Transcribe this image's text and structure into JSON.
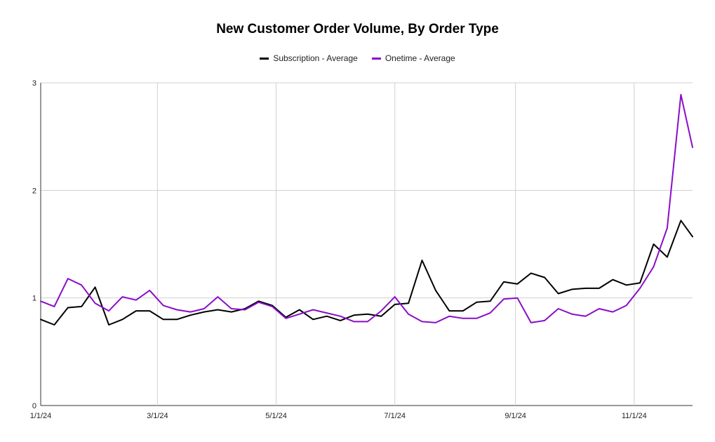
{
  "chart_data": {
    "type": "line",
    "title": "New Customer Order Volume, By Order Type",
    "xlabel": "",
    "ylabel": "",
    "x_start": "2024-01-01",
    "x_end": "2024-12-01",
    "x_ticks": [
      {
        "date": "2024-01-01",
        "label": "1/1/24"
      },
      {
        "date": "2024-03-01",
        "label": "3/1/24"
      },
      {
        "date": "2024-05-01",
        "label": "5/1/24"
      },
      {
        "date": "2024-07-01",
        "label": "7/1/24"
      },
      {
        "date": "2024-09-01",
        "label": "9/1/24"
      },
      {
        "date": "2024-11-01",
        "label": "11/1/24"
      }
    ],
    "ylim": [
      0,
      3
    ],
    "y_ticks": [
      0,
      1,
      2,
      3
    ],
    "grid": true,
    "legend": "top-center",
    "x": [
      "2024-01-01",
      "2024-01-08",
      "2024-01-15",
      "2024-01-22",
      "2024-01-29",
      "2024-02-05",
      "2024-02-12",
      "2024-02-19",
      "2024-02-26",
      "2024-03-04",
      "2024-03-11",
      "2024-03-18",
      "2024-03-25",
      "2024-04-01",
      "2024-04-08",
      "2024-04-15",
      "2024-04-22",
      "2024-04-29",
      "2024-05-06",
      "2024-05-13",
      "2024-05-20",
      "2024-05-27",
      "2024-06-03",
      "2024-06-10",
      "2024-06-17",
      "2024-06-24",
      "2024-07-01",
      "2024-07-08",
      "2024-07-15",
      "2024-07-22",
      "2024-07-29",
      "2024-08-05",
      "2024-08-12",
      "2024-08-19",
      "2024-08-26",
      "2024-09-02",
      "2024-09-09",
      "2024-09-16",
      "2024-09-23",
      "2024-09-30",
      "2024-10-07",
      "2024-10-14",
      "2024-10-21",
      "2024-10-28",
      "2024-11-04",
      "2024-11-11",
      "2024-11-18",
      "2024-11-25",
      "2024-12-01"
    ],
    "series": [
      {
        "name": "Subscription - Average",
        "color": "#000000",
        "values": [
          0.8,
          0.75,
          0.91,
          0.92,
          1.1,
          0.75,
          0.8,
          0.88,
          0.88,
          0.8,
          0.8,
          0.84,
          0.87,
          0.89,
          0.87,
          0.9,
          0.97,
          0.93,
          0.82,
          0.89,
          0.8,
          0.83,
          0.79,
          0.84,
          0.85,
          0.83,
          0.94,
          0.95,
          1.35,
          1.07,
          0.88,
          0.88,
          0.96,
          0.97,
          1.15,
          1.13,
          1.23,
          1.19,
          1.04,
          1.08,
          1.09,
          1.09,
          1.17,
          1.12,
          1.14,
          1.5,
          1.38,
          1.72,
          1.57
        ]
      },
      {
        "name": "Onetime - Average",
        "color": "#8a0ec9",
        "values": [
          0.97,
          0.92,
          1.18,
          1.12,
          0.95,
          0.88,
          1.01,
          0.98,
          1.07,
          0.93,
          0.89,
          0.87,
          0.9,
          1.01,
          0.9,
          0.89,
          0.96,
          0.92,
          0.81,
          0.85,
          0.89,
          0.86,
          0.83,
          0.78,
          0.78,
          0.88,
          1.01,
          0.85,
          0.78,
          0.77,
          0.83,
          0.81,
          0.81,
          0.86,
          0.99,
          1.0,
          0.77,
          0.79,
          0.9,
          0.85,
          0.83,
          0.9,
          0.87,
          0.93,
          1.09,
          1.29,
          1.65,
          2.89,
          2.4
        ]
      }
    ]
  }
}
